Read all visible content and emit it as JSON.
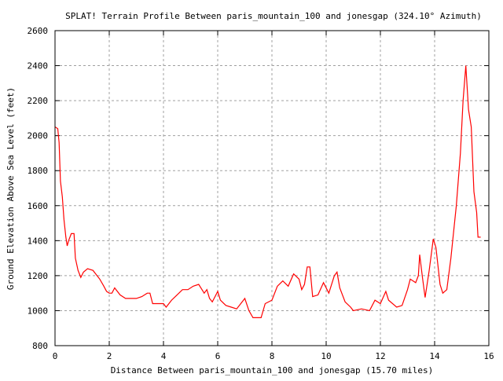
{
  "chart_data": {
    "type": "line",
    "title": "SPLAT! Terrain Profile Between paris_mountain_100 and jonesgap (324.10° Azimuth)",
    "xlabel": "Distance Between paris_mountain_100 and jonesgap (15.70 miles)",
    "ylabel": "Ground Elevation Above Sea Level (feet)",
    "xlim": [
      0,
      16
    ],
    "ylim": [
      800,
      2600
    ],
    "xticks": [
      "0",
      "2",
      "4",
      "6",
      "8",
      "10",
      "12",
      "14",
      "16"
    ],
    "yticks": [
      "800",
      "1000",
      "1200",
      "1400",
      "1600",
      "1800",
      "2000",
      "2200",
      "2400",
      "2600"
    ],
    "grid": true,
    "legend": "none",
    "series": [
      {
        "name": "terrain",
        "color": "#ff0000",
        "x": [
          0,
          0.1,
          0.15,
          0.2,
          0.27,
          0.33,
          0.4,
          0.45,
          0.5,
          0.6,
          0.7,
          0.75,
          0.85,
          0.95,
          1.05,
          1.2,
          1.4,
          1.5,
          1.65,
          1.8,
          1.9,
          2.0,
          2.1,
          2.2,
          2.4,
          2.6,
          2.8,
          3.0,
          3.2,
          3.4,
          3.5,
          3.6,
          3.8,
          4.0,
          4.1,
          4.3,
          4.5,
          4.7,
          4.9,
          5.1,
          5.3,
          5.5,
          5.6,
          5.7,
          5.8,
          5.9,
          6.0,
          6.1,
          6.3,
          6.5,
          6.7,
          6.9,
          7.0,
          7.15,
          7.3,
          7.6,
          7.75,
          8.0,
          8.2,
          8.4,
          8.6,
          8.8,
          9.0,
          9.1,
          9.2,
          9.3,
          9.4,
          9.5,
          9.7,
          9.9,
          10.1,
          10.3,
          10.4,
          10.5,
          10.7,
          10.9,
          11.0,
          11.3,
          11.6,
          11.8,
          12.0,
          12.2,
          12.3,
          12.6,
          12.8,
          13.0,
          13.1,
          13.3,
          13.4,
          13.45,
          13.55,
          13.65,
          13.8,
          13.95,
          14.05,
          14.2,
          14.3,
          14.45,
          14.6,
          14.8,
          14.95,
          15.05,
          15.15,
          15.25,
          15.35,
          15.45,
          15.55,
          15.6,
          15.7
        ],
        "y": [
          2050,
          2040,
          1960,
          1740,
          1650,
          1520,
          1420,
          1370,
          1400,
          1440,
          1440,
          1300,
          1230,
          1190,
          1220,
          1240,
          1230,
          1210,
          1180,
          1140,
          1110,
          1100,
          1100,
          1130,
          1090,
          1070,
          1070,
          1070,
          1080,
          1100,
          1100,
          1040,
          1040,
          1040,
          1020,
          1060,
          1090,
          1120,
          1120,
          1140,
          1150,
          1100,
          1120,
          1070,
          1050,
          1080,
          1110,
          1060,
          1030,
          1020,
          1010,
          1050,
          1070,
          1000,
          960,
          960,
          1040,
          1060,
          1140,
          1170,
          1140,
          1210,
          1180,
          1120,
          1150,
          1250,
          1250,
          1080,
          1090,
          1160,
          1100,
          1200,
          1220,
          1130,
          1050,
          1020,
          1000,
          1010,
          1000,
          1060,
          1040,
          1110,
          1060,
          1020,
          1030,
          1120,
          1180,
          1160,
          1200,
          1320,
          1190,
          1075,
          1230,
          1410,
          1360,
          1150,
          1100,
          1120,
          1300,
          1600,
          1900,
          2200,
          2400,
          2150,
          2050,
          1680,
          1560,
          1420,
          1420
        ]
      }
    ]
  }
}
